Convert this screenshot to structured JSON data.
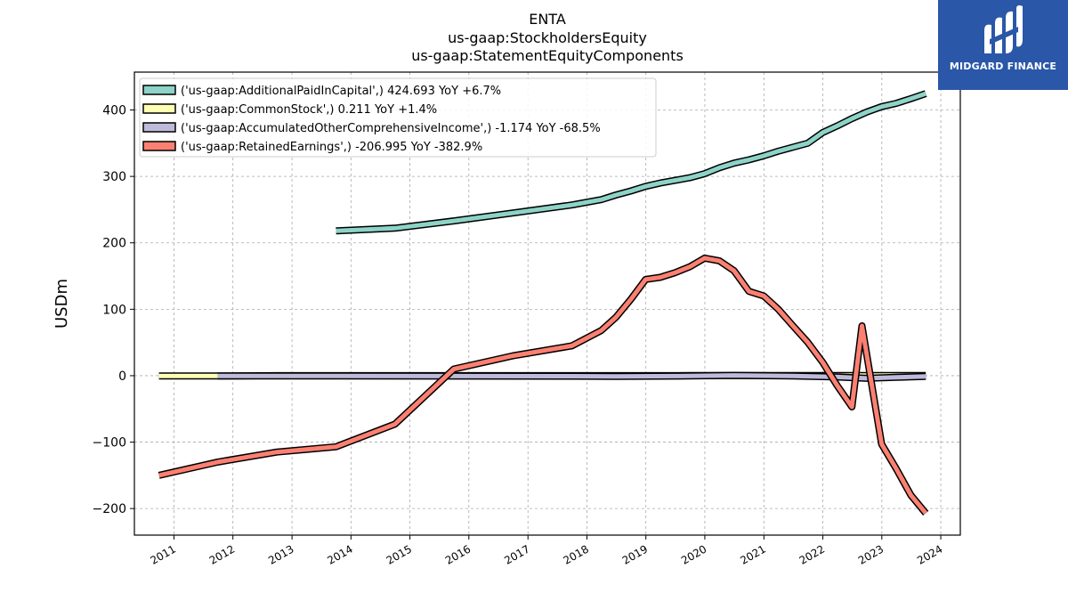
{
  "chart_data": {
    "type": "line",
    "title": [
      "ENTA",
      "us-gaap:StockholdersEquity",
      "us-gaap:StatementEquityComponents"
    ],
    "xlabel": "",
    "ylabel": "USDm",
    "xlim": [
      "2010-05-01",
      "2024-05-01"
    ],
    "ylim": [
      -240,
      457
    ],
    "x_ticks": [
      "2011",
      "2012",
      "2013",
      "2014",
      "2015",
      "2016",
      "2017",
      "2018",
      "2019",
      "2020",
      "2021",
      "2022",
      "2023",
      "2024"
    ],
    "y_ticks": [
      -200,
      -100,
      0,
      100,
      200,
      300,
      400
    ],
    "grid": true,
    "legend_position": "top-left",
    "series": [
      {
        "name": "('us-gaap:AdditionalPaidInCapital',) 424.693 YoY +6.7%",
        "color": "#8dd3c7",
        "points": [
          [
            "2013-09-30",
            218
          ],
          [
            "2014-09-30",
            222
          ],
          [
            "2015-09-30",
            233
          ],
          [
            "2016-09-30",
            245
          ],
          [
            "2017-09-30",
            257
          ],
          [
            "2018-03-31",
            265
          ],
          [
            "2018-06-30",
            272
          ],
          [
            "2018-09-30",
            278
          ],
          [
            "2018-12-31",
            285
          ],
          [
            "2019-03-31",
            290
          ],
          [
            "2019-06-30",
            294
          ],
          [
            "2019-09-30",
            298
          ],
          [
            "2019-12-31",
            304
          ],
          [
            "2020-03-31",
            313
          ],
          [
            "2020-06-30",
            320
          ],
          [
            "2020-09-30",
            325
          ],
          [
            "2020-12-31",
            331
          ],
          [
            "2021-03-31",
            338
          ],
          [
            "2021-06-30",
            344
          ],
          [
            "2021-09-30",
            350
          ],
          [
            "2021-12-31",
            366
          ],
          [
            "2022-03-31",
            376
          ],
          [
            "2022-06-30",
            387
          ],
          [
            "2022-09-30",
            397
          ],
          [
            "2022-12-31",
            405
          ],
          [
            "2023-03-31",
            410
          ],
          [
            "2023-06-30",
            417
          ],
          [
            "2023-09-30",
            424.693
          ]
        ]
      },
      {
        "name": "('us-gaap:CommonStock',) 0.211 YoY +1.4%",
        "color": "#ffffb3",
        "points": [
          [
            "2010-09-30",
            -0.5
          ],
          [
            "2011-09-30",
            -0.5
          ],
          [
            "2012-09-30",
            0.1
          ],
          [
            "2013-09-30",
            0.1
          ],
          [
            "2014-09-30",
            0.1
          ],
          [
            "2015-09-30",
            0.1
          ],
          [
            "2016-09-30",
            0.1
          ],
          [
            "2017-09-30",
            0.1
          ],
          [
            "2018-09-30",
            0.1
          ],
          [
            "2019-09-30",
            0.2
          ],
          [
            "2020-09-30",
            0.2
          ],
          [
            "2021-09-30",
            0.2
          ],
          [
            "2022-09-30",
            0.2
          ],
          [
            "2023-09-30",
            0.211
          ]
        ]
      },
      {
        "name": "('us-gaap:AccumulatedOtherComprehensiveIncome',) -1.174 YoY -68.5%",
        "color": "#bebada",
        "points": [
          [
            "2011-09-30",
            -0.5
          ],
          [
            "2013-09-30",
            -0.5
          ],
          [
            "2015-09-30",
            -0.6
          ],
          [
            "2017-09-30",
            -0.7
          ],
          [
            "2018-06-30",
            -1.0
          ],
          [
            "2019-06-30",
            -0.6
          ],
          [
            "2020-06-30",
            0.4
          ],
          [
            "2021-06-30",
            -0.5
          ],
          [
            "2022-03-31",
            -2.0
          ],
          [
            "2022-09-30",
            -4.0
          ],
          [
            "2023-03-31",
            -2.5
          ],
          [
            "2023-09-30",
            -1.174
          ]
        ]
      },
      {
        "name": "('us-gaap:RetainedEarnings',) -206.995 YoY -382.9%",
        "color": "#fb8072",
        "points": [
          [
            "2010-09-30",
            -150
          ],
          [
            "2011-09-30",
            -130
          ],
          [
            "2012-09-30",
            -115
          ],
          [
            "2013-09-30",
            -107
          ],
          [
            "2014-09-30",
            -73
          ],
          [
            "2015-09-30",
            10
          ],
          [
            "2016-09-30",
            30
          ],
          [
            "2017-09-30",
            45
          ],
          [
            "2018-03-31",
            68
          ],
          [
            "2018-06-30",
            88
          ],
          [
            "2018-09-30",
            115
          ],
          [
            "2018-12-31",
            145
          ],
          [
            "2019-03-31",
            148
          ],
          [
            "2019-06-30",
            155
          ],
          [
            "2019-09-30",
            164
          ],
          [
            "2019-12-31",
            177
          ],
          [
            "2020-03-31",
            173
          ],
          [
            "2020-06-30",
            158
          ],
          [
            "2020-09-30",
            127
          ],
          [
            "2020-12-31",
            120
          ],
          [
            "2021-03-31",
            100
          ],
          [
            "2021-06-30",
            75
          ],
          [
            "2021-09-30",
            50
          ],
          [
            "2021-12-31",
            20
          ],
          [
            "2022-03-31",
            -15
          ],
          [
            "2022-06-30",
            -47
          ],
          [
            "2022-08-31",
            75
          ],
          [
            "2022-12-31",
            -103
          ],
          [
            "2023-03-31",
            -140
          ],
          [
            "2023-06-30",
            -180
          ],
          [
            "2023-09-30",
            -206.995
          ]
        ]
      }
    ]
  },
  "logo": {
    "name": "MIDGARD FINANCE",
    "icon": "midgard-finance-logo-icon",
    "color": "#2a57a8"
  }
}
